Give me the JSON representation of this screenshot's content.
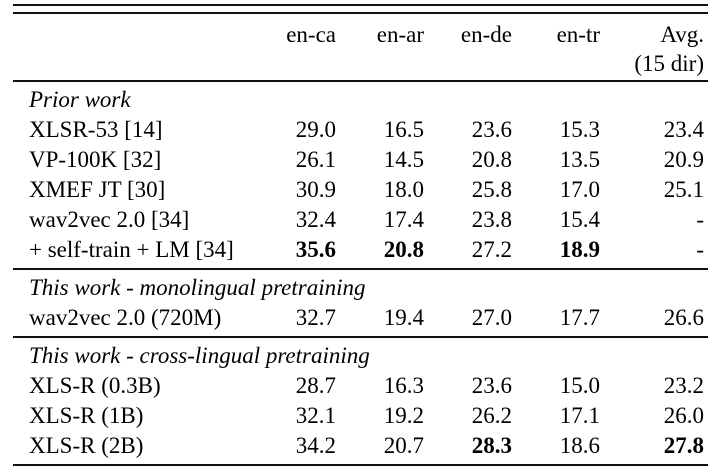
{
  "colors": {
    "background": "#ffffff",
    "text": "#000000",
    "rule": "#111111"
  },
  "table": {
    "header": {
      "cols": [
        "en-ca",
        "en-ar",
        "en-de",
        "en-tr"
      ],
      "avg_line1": "Avg.",
      "avg_line2": "(15 dir)"
    },
    "sections": [
      {
        "title": "Prior work",
        "rows": [
          {
            "label": "XLSR-53 [14]",
            "values": [
              "29.0",
              "16.5",
              "23.6",
              "15.3",
              "23.4"
            ],
            "bold": [
              false,
              false,
              false,
              false,
              false
            ]
          },
          {
            "label": "VP-100K [32]",
            "values": [
              "26.1",
              "14.5",
              "20.8",
              "13.5",
              "20.9"
            ],
            "bold": [
              false,
              false,
              false,
              false,
              false
            ]
          },
          {
            "label": "XMEF JT [30]",
            "values": [
              "30.9",
              "18.0",
              "25.8",
              "17.0",
              "25.1"
            ],
            "bold": [
              false,
              false,
              false,
              false,
              false
            ]
          },
          {
            "label": "wav2vec 2.0 [34]",
            "values": [
              "32.4",
              "17.4",
              "23.8",
              "15.4",
              "-"
            ],
            "bold": [
              false,
              false,
              false,
              false,
              false
            ]
          },
          {
            "label": "+ self-train + LM [34]",
            "values": [
              "35.6",
              "20.8",
              "27.2",
              "18.9",
              "-"
            ],
            "bold": [
              true,
              true,
              false,
              true,
              false
            ]
          }
        ]
      },
      {
        "title": "This work - monolingual pretraining",
        "rows": [
          {
            "label": "wav2vec 2.0 (720M)",
            "values": [
              "32.7",
              "19.4",
              "27.0",
              "17.7",
              "26.6"
            ],
            "bold": [
              false,
              false,
              false,
              false,
              false
            ]
          }
        ]
      },
      {
        "title": "This work - cross-lingual pretraining",
        "rows": [
          {
            "label": "XLS-R (0.3B)",
            "values": [
              "28.7",
              "16.3",
              "23.6",
              "15.0",
              "23.2"
            ],
            "bold": [
              false,
              false,
              false,
              false,
              false
            ]
          },
          {
            "label": "XLS-R (1B)",
            "values": [
              "32.1",
              "19.2",
              "26.2",
              "17.1",
              "26.0"
            ],
            "bold": [
              false,
              false,
              false,
              false,
              false
            ]
          },
          {
            "label": "XLS-R (2B)",
            "values": [
              "34.2",
              "20.7",
              "28.3",
              "18.6",
              "27.8"
            ],
            "bold": [
              false,
              false,
              true,
              false,
              true
            ]
          }
        ]
      }
    ]
  }
}
